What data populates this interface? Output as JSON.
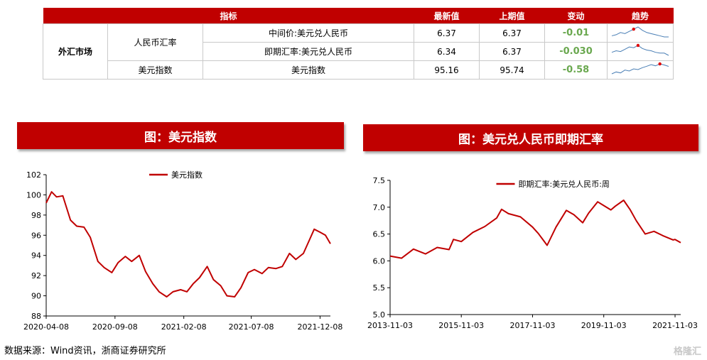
{
  "table": {
    "headers": [
      "指标",
      "最新值",
      "上期值",
      "变动",
      "趋势"
    ],
    "section": "外汇市场",
    "groups": [
      "人民币汇率",
      "美元指数"
    ],
    "rows": [
      {
        "name": "中间价:美元兑人民币",
        "latest": "6.37",
        "previous": "6.37",
        "change": "-0.01",
        "spark": [
          6.38,
          6.39,
          6.41,
          6.4,
          6.42,
          6.44,
          6.46,
          6.43,
          6.41,
          6.4,
          6.39,
          6.38,
          6.37,
          6.37
        ],
        "spark_marker_index": 5
      },
      {
        "name": "即期汇率:美元兑人民币",
        "latest": "6.34",
        "previous": "6.37",
        "change": "-0.030",
        "spark": [
          6.38,
          6.4,
          6.39,
          6.42,
          6.45,
          6.44,
          6.47,
          6.43,
          6.41,
          6.4,
          6.38,
          6.37,
          6.37,
          6.34
        ],
        "spark_marker_index": 6
      },
      {
        "name": "美元指数",
        "latest": "95.16",
        "previous": "95.74",
        "change": "-0.58",
        "spark": [
          92.0,
          92.8,
          92.4,
          93.6,
          93.2,
          94.1,
          93.8,
          94.6,
          95.2,
          95.9,
          95.4,
          96.2,
          95.74,
          95.16
        ],
        "spark_marker_index": 11
      }
    ],
    "change_color": "#6aa84f",
    "header_color": "#c00000"
  },
  "banners": {
    "left": "图：美元指数",
    "right": "图：美元兑人民币即期汇率"
  },
  "source": "数据来源：Wind资讯，浙商证券研究所",
  "watermark": "格隆汇",
  "chart_data": [
    {
      "type": "line",
      "title": "图：美元指数",
      "series": [
        {
          "name": "美元指数",
          "color": "#c00000",
          "x": [
            "2020-04-08",
            "2020-04-20",
            "2020-05-01",
            "2020-05-15",
            "2020-06-01",
            "2020-06-15",
            "2020-07-01",
            "2020-07-15",
            "2020-08-01",
            "2020-08-15",
            "2020-09-01",
            "2020-09-15",
            "2020-10-01",
            "2020-10-15",
            "2020-11-01",
            "2020-11-15",
            "2020-12-01",
            "2020-12-15",
            "2021-01-01",
            "2021-01-15",
            "2021-02-01",
            "2021-02-15",
            "2021-03-01",
            "2021-03-15",
            "2021-04-01",
            "2021-04-15",
            "2021-05-01",
            "2021-05-15",
            "2021-06-01",
            "2021-06-15",
            "2021-07-01",
            "2021-07-15",
            "2021-08-01",
            "2021-08-15",
            "2021-09-01",
            "2021-09-15",
            "2021-10-01",
            "2021-10-15",
            "2021-11-01",
            "2021-11-15",
            "2021-11-25",
            "2021-12-08",
            "2021-12-20",
            "2021-12-31"
          ],
          "y": [
            99.2,
            100.3,
            99.8,
            99.9,
            97.5,
            96.9,
            96.8,
            95.8,
            93.4,
            92.8,
            92.3,
            93.3,
            93.9,
            93.4,
            94.0,
            92.4,
            91.2,
            90.4,
            89.9,
            90.4,
            90.6,
            90.4,
            91.2,
            91.8,
            92.9,
            91.6,
            91.0,
            90.0,
            89.9,
            90.8,
            92.3,
            92.6,
            92.2,
            92.8,
            92.7,
            92.9,
            94.2,
            93.6,
            94.2,
            95.6,
            96.6,
            96.3,
            96.0,
            95.16
          ]
        }
      ],
      "x_ticks": [
        "2020-04-08",
        "2020-09-08",
        "2021-02-08",
        "2021-07-08",
        "2021-12-08"
      ],
      "ylim": [
        88,
        102
      ],
      "y_ticks": [
        88,
        90,
        92,
        94,
        96,
        98,
        100,
        102
      ],
      "legend": "top-center",
      "grid": false
    },
    {
      "type": "line",
      "title": "图：美元兑人民币即期汇率",
      "series": [
        {
          "name": "即期汇率:美元兑人民币:周",
          "color": "#c00000",
          "x": [
            "2013-11-03",
            "2014-03-01",
            "2014-07-01",
            "2014-11-01",
            "2015-03-01",
            "2015-07-01",
            "2015-08-15",
            "2015-11-03",
            "2016-03-01",
            "2016-07-01",
            "2016-11-01",
            "2016-12-20",
            "2017-03-01",
            "2017-07-01",
            "2017-11-03",
            "2018-01-01",
            "2018-04-01",
            "2018-07-01",
            "2018-10-15",
            "2019-01-01",
            "2019-04-01",
            "2019-06-01",
            "2019-09-01",
            "2019-11-03",
            "2020-01-15",
            "2020-03-01",
            "2020-05-25",
            "2020-08-01",
            "2020-10-01",
            "2021-01-01",
            "2021-04-01",
            "2021-07-01",
            "2021-10-15",
            "2021-11-03",
            "2021-12-31"
          ],
          "y": [
            6.09,
            6.05,
            6.22,
            6.13,
            6.25,
            6.21,
            6.4,
            6.36,
            6.53,
            6.64,
            6.8,
            6.96,
            6.88,
            6.82,
            6.63,
            6.51,
            6.29,
            6.63,
            6.94,
            6.86,
            6.71,
            6.89,
            7.1,
            7.03,
            6.95,
            7.02,
            7.13,
            6.95,
            6.75,
            6.5,
            6.55,
            6.47,
            6.39,
            6.4,
            6.34
          ]
        }
      ],
      "x_ticks": [
        "2013-11-03",
        "2015-11-03",
        "2017-11-03",
        "2019-11-03",
        "2021-11-03"
      ],
      "ylim": [
        5.0,
        7.5
      ],
      "y_ticks": [
        "5.0",
        "5.5",
        "6.0",
        "6.5",
        "7.0",
        "7.5"
      ],
      "legend": "top-center",
      "grid": false
    }
  ]
}
